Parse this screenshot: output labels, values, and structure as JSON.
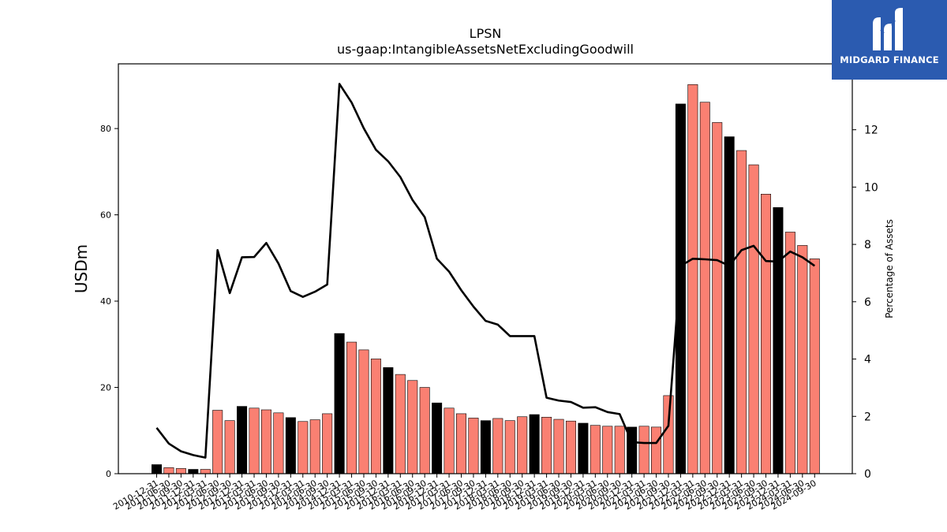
{
  "chart_data": {
    "type": "bar",
    "title": "LPSN",
    "subtitle": "us-gaap:IntangibleAssetsNetExcludingGoodwill",
    "ylabel": "USDm",
    "y2label": "Percentage of Assets",
    "ylim": [
      0,
      95
    ],
    "y2lim": [
      0,
      14.3
    ],
    "yticks": [
      0,
      20,
      40,
      60,
      80
    ],
    "y2ticks": [
      0,
      2,
      4,
      6,
      8,
      10,
      12
    ],
    "grid": false,
    "categories": [
      "2010-12-31",
      "2011-06-30",
      "2011-09-30",
      "2011-12-31",
      "2012-03-31",
      "2012-06-30",
      "2012-09-30",
      "2012-12-31",
      "2013-03-31",
      "2013-06-30",
      "2013-09-30",
      "2013-12-31",
      "2014-03-31",
      "2014-06-30",
      "2014-09-30",
      "2014-12-31",
      "2015-03-31",
      "2015-06-30",
      "2015-09-30",
      "2015-12-31",
      "2016-03-31",
      "2016-06-30",
      "2016-09-30",
      "2016-12-31",
      "2017-03-31",
      "2017-06-30",
      "2017-09-30",
      "2017-12-31",
      "2018-03-31",
      "2018-06-30",
      "2018-09-30",
      "2018-12-31",
      "2019-03-31",
      "2019-06-30",
      "2019-09-30",
      "2019-12-31",
      "2020-03-31",
      "2020-06-30",
      "2020-09-30",
      "2020-12-31",
      "2021-03-31",
      "2021-06-30",
      "2021-09-30",
      "2021-12-31",
      "2022-03-31",
      "2022-06-30",
      "2022-09-30",
      "2022-12-31",
      "2023-03-31",
      "2023-06-30",
      "2023-09-30",
      "2023-12-31",
      "2024-03-31",
      "2024-06-30",
      "2024-09-30"
    ],
    "series": [
      {
        "kind": "bar",
        "axis": "left",
        "values": [
          2.1,
          1.4,
          1.2,
          1.0,
          1.0,
          14.7,
          12.3,
          15.6,
          15.2,
          14.8,
          14.1,
          13.0,
          12.1,
          12.5,
          13.9,
          32.5,
          30.5,
          28.7,
          26.6,
          24.6,
          23.0,
          21.6,
          20.0,
          16.4,
          15.2,
          13.9,
          12.9,
          12.3,
          12.8,
          12.3,
          13.2,
          13.7,
          13.1,
          12.6,
          12.2,
          11.7,
          11.2,
          11.0,
          11.0,
          10.8,
          11.0,
          10.8,
          18.1,
          85.7,
          90.2,
          86.1,
          81.4,
          78.1,
          74.9,
          71.6,
          64.8,
          61.7,
          56.0,
          52.9,
          49.8
        ],
        "highlight": [
          true,
          false,
          false,
          true,
          false,
          false,
          false,
          true,
          false,
          false,
          false,
          true,
          false,
          false,
          false,
          true,
          false,
          false,
          false,
          true,
          false,
          false,
          false,
          true,
          false,
          false,
          false,
          true,
          false,
          false,
          false,
          true,
          false,
          false,
          false,
          true,
          false,
          false,
          false,
          true,
          false,
          false,
          false,
          true,
          false,
          false,
          false,
          true,
          false,
          false,
          false,
          true,
          false,
          false,
          false
        ]
      },
      {
        "kind": "line",
        "axis": "right",
        "values": [
          1.6,
          1.05,
          0.78,
          0.65,
          0.56,
          7.8,
          6.3,
          7.55,
          7.56,
          8.05,
          7.33,
          6.37,
          6.17,
          6.35,
          6.6,
          13.6,
          12.95,
          12.05,
          11.3,
          10.9,
          10.35,
          9.55,
          8.95,
          7.5,
          7.05,
          6.4,
          5.83,
          5.33,
          5.2,
          4.8,
          4.8,
          4.8,
          2.65,
          2.55,
          2.5,
          2.3,
          2.32,
          2.15,
          2.08,
          1.1,
          1.07,
          1.07,
          1.67,
          7.25,
          7.5,
          7.48,
          7.45,
          7.25,
          7.8,
          7.95,
          7.42,
          7.4,
          7.75,
          7.55,
          7.25
        ]
      }
    ],
    "colors": {
      "bar": "#FA8072",
      "highlight": "#000000",
      "line": "#000000",
      "logo_bg": "#2B5BB0"
    }
  },
  "logo": {
    "text": "MIDGARD FINANCE",
    "icon": "midgard-m-icon"
  }
}
